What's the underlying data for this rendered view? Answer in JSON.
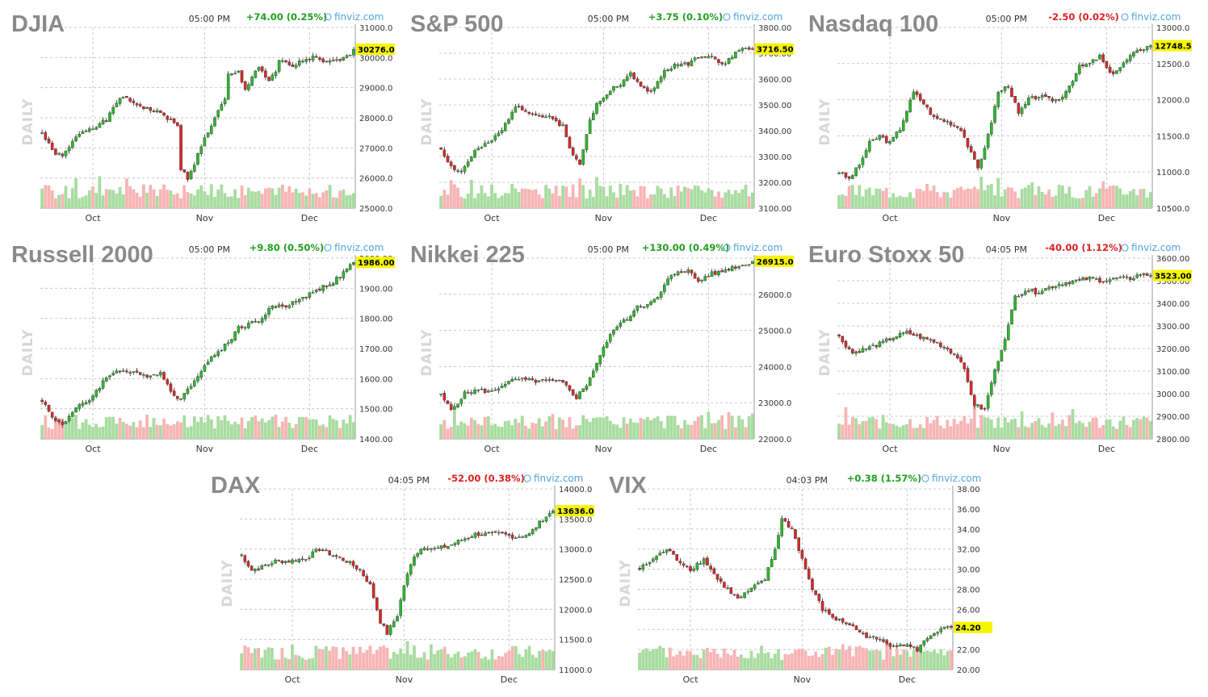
{
  "colors": {
    "up": "#2db82d",
    "down": "#d62a2a",
    "vol_up": "#a8dca0",
    "vol_down": "#f7b4b4",
    "grid": "#c8c8c8",
    "highlight": "#f5f500",
    "change_up": "#1fa01f",
    "change_down": "#dd1f1f",
    "source": "#4da6e0",
    "title": "#8a8a8a"
  },
  "chart_data": [
    {
      "type": "candlestick",
      "title": "DJIA",
      "time": "05:00 PM",
      "change": "+74.00 (0.25%)",
      "change_dir": "up",
      "source": "finviz.com",
      "side_label": "DAILY",
      "ylim": [
        25000,
        31000
      ],
      "yticks": [
        "31000.0",
        "30000.0",
        "29000.0",
        "28000.0",
        "27000.0",
        "26000.0",
        "25000.0"
      ],
      "xticks": [
        "Oct",
        "Nov",
        "Dec"
      ],
      "last_label": "30276.0",
      "last_value": 30276,
      "path": [
        [
          0,
          27500
        ],
        [
          3,
          26900
        ],
        [
          6,
          26700
        ],
        [
          11,
          27500
        ],
        [
          15,
          27700
        ],
        [
          19,
          27900
        ],
        [
          23,
          28700
        ],
        [
          27,
          28500
        ],
        [
          31,
          28300
        ],
        [
          36,
          28100
        ],
        [
          40,
          27700
        ],
        [
          41,
          26300
        ],
        [
          43,
          26000
        ],
        [
          45,
          26500
        ],
        [
          48,
          27300
        ],
        [
          51,
          28000
        ],
        [
          54,
          28600
        ],
        [
          55,
          29400
        ],
        [
          58,
          29500
        ],
        [
          60,
          28900
        ],
        [
          62,
          29400
        ],
        [
          64,
          29700
        ],
        [
          67,
          29200
        ],
        [
          69,
          29500
        ],
        [
          70,
          29900
        ],
        [
          74,
          29700
        ],
        [
          77,
          29900
        ],
        [
          80,
          30000
        ],
        [
          84,
          29800
        ],
        [
          87,
          29900
        ],
        [
          90,
          30000
        ],
        [
          92,
          30276
        ]
      ]
    },
    {
      "type": "candlestick",
      "title": "S&P 500",
      "time": "05:00 PM",
      "change": "+3.75 (0.10%)",
      "change_dir": "up",
      "source": "finviz.com",
      "side_label": "DAILY",
      "ylim": [
        3100,
        3800
      ],
      "yticks": [
        "3800.00",
        "3700.00",
        "3600.00",
        "3500.00",
        "3400.00",
        "3300.00",
        "3200.00",
        "3100.00"
      ],
      "xticks": [
        "Oct",
        "Nov",
        "Dec"
      ],
      "last_label": "3716.50",
      "last_value": 3716.5,
      "path": [
        [
          0,
          3330
        ],
        [
          3,
          3260
        ],
        [
          6,
          3240
        ],
        [
          10,
          3320
        ],
        [
          14,
          3350
        ],
        [
          18,
          3400
        ],
        [
          22,
          3500
        ],
        [
          25,
          3480
        ],
        [
          28,
          3460
        ],
        [
          32,
          3450
        ],
        [
          36,
          3420
        ],
        [
          39,
          3300
        ],
        [
          41,
          3270
        ],
        [
          44,
          3440
        ],
        [
          46,
          3510
        ],
        [
          50,
          3560
        ],
        [
          53,
          3580
        ],
        [
          56,
          3620
        ],
        [
          60,
          3560
        ],
        [
          63,
          3560
        ],
        [
          66,
          3630
        ],
        [
          70,
          3660
        ],
        [
          73,
          3660
        ],
        [
          76,
          3690
        ],
        [
          80,
          3690
        ],
        [
          83,
          3650
        ],
        [
          86,
          3690
        ],
        [
          89,
          3720
        ],
        [
          92,
          3716.5
        ]
      ]
    },
    {
      "type": "candlestick",
      "title": "Nasdaq 100",
      "time": "05:00 PM",
      "change": "-2.50 (0.02%)",
      "change_dir": "down",
      "source": "finviz.com",
      "side_label": "DAILY",
      "ylim": [
        10500,
        13000
      ],
      "yticks": [
        "13000.0",
        "12500.0",
        "12000.0",
        "11500.0",
        "11000.0",
        "10500.0"
      ],
      "xticks": [
        "Oct",
        "Nov",
        "Dec"
      ],
      "last_label": "12748.5",
      "last_value": 12748.5,
      "path": [
        [
          0,
          11000
        ],
        [
          3,
          10900
        ],
        [
          6,
          11100
        ],
        [
          9,
          11400
        ],
        [
          12,
          11500
        ],
        [
          15,
          11400
        ],
        [
          18,
          11600
        ],
        [
          22,
          12100
        ],
        [
          25,
          11950
        ],
        [
          28,
          11750
        ],
        [
          32,
          11700
        ],
        [
          36,
          11600
        ],
        [
          39,
          11250
        ],
        [
          41,
          11050
        ],
        [
          44,
          11500
        ],
        [
          47,
          12100
        ],
        [
          50,
          12200
        ],
        [
          53,
          11800
        ],
        [
          56,
          12000
        ],
        [
          59,
          12050
        ],
        [
          62,
          12000
        ],
        [
          65,
          12000
        ],
        [
          68,
          12200
        ],
        [
          71,
          12450
        ],
        [
          74,
          12500
        ],
        [
          77,
          12600
        ],
        [
          80,
          12350
        ],
        [
          83,
          12450
        ],
        [
          86,
          12600
        ],
        [
          89,
          12700
        ],
        [
          92,
          12748.5
        ]
      ]
    },
    {
      "type": "candlestick",
      "title": "Russell 2000",
      "time": "05:00 PM",
      "change": "+9.80 (0.50%)",
      "change_dir": "up",
      "source": "finviz.com",
      "side_label": "DAILY",
      "ylim": [
        1400,
        2000
      ],
      "yticks": [
        "2000.00",
        "1900.00",
        "1800.00",
        "1700.00",
        "1600.00",
        "1500.00",
        "1400.00"
      ],
      "xticks": [
        "Oct",
        "Nov",
        "Dec"
      ],
      "last_label": "1986.00",
      "last_value": 1986,
      "path": [
        [
          0,
          1530
        ],
        [
          3,
          1470
        ],
        [
          6,
          1450
        ],
        [
          10,
          1500
        ],
        [
          14,
          1530
        ],
        [
          18,
          1590
        ],
        [
          22,
          1630
        ],
        [
          26,
          1620
        ],
        [
          30,
          1610
        ],
        [
          35,
          1620
        ],
        [
          38,
          1560
        ],
        [
          41,
          1530
        ],
        [
          44,
          1580
        ],
        [
          47,
          1630
        ],
        [
          51,
          1680
        ],
        [
          55,
          1720
        ],
        [
          58,
          1770
        ],
        [
          61,
          1780
        ],
        [
          65,
          1800
        ],
        [
          68,
          1840
        ],
        [
          72,
          1840
        ],
        [
          75,
          1860
        ],
        [
          79,
          1880
        ],
        [
          82,
          1900
        ],
        [
          86,
          1920
        ],
        [
          89,
          1950
        ],
        [
          92,
          1986
        ]
      ]
    },
    {
      "type": "candlestick",
      "title": "Nikkei 225",
      "time": "05:00 PM",
      "change": "+130.00 (0.49%)",
      "change_dir": "up",
      "source": "finviz.com",
      "side_label": "DAILY",
      "ylim": [
        22000,
        27000
      ],
      "yticks": [
        "27000.0",
        "26000.0",
        "25000.0",
        "24000.0",
        "23000.0",
        "22000.0"
      ],
      "xticks": [
        "Oct",
        "Nov",
        "Dec"
      ],
      "last_label": "26915.0",
      "last_value": 26915,
      "path": [
        [
          0,
          23200
        ],
        [
          3,
          22800
        ],
        [
          7,
          23250
        ],
        [
          11,
          23350
        ],
        [
          15,
          23300
        ],
        [
          19,
          23550
        ],
        [
          23,
          23650
        ],
        [
          27,
          23600
        ],
        [
          32,
          23600
        ],
        [
          36,
          23550
        ],
        [
          40,
          23150
        ],
        [
          43,
          23500
        ],
        [
          46,
          24100
        ],
        [
          49,
          24700
        ],
        [
          52,
          25150
        ],
        [
          55,
          25300
        ],
        [
          58,
          25700
        ],
        [
          61,
          25700
        ],
        [
          64,
          25900
        ],
        [
          67,
          26400
        ],
        [
          70,
          26650
        ],
        [
          73,
          26650
        ],
        [
          76,
          26350
        ],
        [
          79,
          26550
        ],
        [
          82,
          26600
        ],
        [
          86,
          26750
        ],
        [
          89,
          26800
        ],
        [
          92,
          26915
        ]
      ]
    },
    {
      "type": "candlestick",
      "title": "Euro Stoxx 50",
      "time": "04:05 PM",
      "change": "-40.00 (1.12%)",
      "change_dir": "down",
      "source": "finviz.com",
      "side_label": "DAILY",
      "ylim": [
        2800,
        3600
      ],
      "yticks": [
        "3600.00",
        "3500.00",
        "3400.00",
        "3300.00",
        "3200.00",
        "3100.00",
        "3000.00",
        "2900.00",
        "2800.00"
      ],
      "xticks": [
        "Oct",
        "Nov",
        "Dec"
      ],
      "last_label": "3523.00",
      "last_value": 3523,
      "path": [
        [
          0,
          3250
        ],
        [
          4,
          3180
        ],
        [
          8,
          3200
        ],
        [
          12,
          3220
        ],
        [
          16,
          3250
        ],
        [
          20,
          3270
        ],
        [
          24,
          3250
        ],
        [
          28,
          3230
        ],
        [
          32,
          3200
        ],
        [
          36,
          3150
        ],
        [
          38,
          3050
        ],
        [
          40,
          2950
        ],
        [
          43,
          2930
        ],
        [
          45,
          3050
        ],
        [
          48,
          3200
        ],
        [
          50,
          3300
        ],
        [
          52,
          3430
        ],
        [
          55,
          3460
        ],
        [
          58,
          3450
        ],
        [
          62,
          3470
        ],
        [
          66,
          3490
        ],
        [
          70,
          3500
        ],
        [
          74,
          3510
        ],
        [
          78,
          3500
        ],
        [
          82,
          3510
        ],
        [
          86,
          3510
        ],
        [
          89,
          3530
        ],
        [
          92,
          3523
        ]
      ]
    },
    {
      "type": "candlestick",
      "title": "DAX",
      "time": "04:05 PM",
      "change": "-52.00 (0.38%)",
      "change_dir": "down",
      "source": "finviz.com",
      "side_label": "DAILY",
      "ylim": [
        11000,
        14000
      ],
      "yticks": [
        "14000.0",
        "13500.0",
        "13000.0",
        "12500.0",
        "12000.0",
        "11500.0",
        "11000.0"
      ],
      "xticks": [
        "Oct",
        "Nov",
        "Dec"
      ],
      "last_label": "13636.0",
      "last_value": 13636,
      "path": [
        [
          0,
          12900
        ],
        [
          3,
          12650
        ],
        [
          6,
          12700
        ],
        [
          10,
          12800
        ],
        [
          14,
          12800
        ],
        [
          19,
          12850
        ],
        [
          23,
          13000
        ],
        [
          27,
          12900
        ],
        [
          31,
          12800
        ],
        [
          35,
          12650
        ],
        [
          38,
          12400
        ],
        [
          41,
          11800
        ],
        [
          43,
          11600
        ],
        [
          46,
          11900
        ],
        [
          48,
          12400
        ],
        [
          51,
          12900
        ],
        [
          54,
          13050
        ],
        [
          57,
          13000
        ],
        [
          61,
          13050
        ],
        [
          65,
          13150
        ],
        [
          69,
          13250
        ],
        [
          73,
          13250
        ],
        [
          77,
          13250
        ],
        [
          81,
          13200
        ],
        [
          85,
          13250
        ],
        [
          89,
          13500
        ],
        [
          92,
          13636
        ]
      ]
    },
    {
      "type": "candlestick",
      "title": "VIX",
      "time": "04:03 PM",
      "change": "+0.38 (1.57%)",
      "change_dir": "up",
      "source": "finviz.com",
      "side_label": "DAILY",
      "ylim": [
        20,
        38
      ],
      "yticks": [
        "38.00",
        "36.00",
        "34.00",
        "32.00",
        "30.00",
        "28.00",
        "26.00",
        "24.00",
        "22.00",
        "20.00"
      ],
      "xticks": [
        "Oct",
        "Nov",
        "Dec"
      ],
      "last_label": "24.20",
      "last_value": 24.2,
      "path": [
        [
          0,
          30
        ],
        [
          4,
          31
        ],
        [
          8,
          32
        ],
        [
          11,
          31
        ],
        [
          15,
          30
        ],
        [
          19,
          31
        ],
        [
          23,
          29
        ],
        [
          26,
          28
        ],
        [
          29,
          27
        ],
        [
          33,
          28
        ],
        [
          37,
          29
        ],
        [
          40,
          32
        ],
        [
          42,
          35
        ],
        [
          45,
          34
        ],
        [
          48,
          31
        ],
        [
          51,
          28
        ],
        [
          54,
          26
        ],
        [
          58,
          25
        ],
        [
          62,
          24.5
        ],
        [
          66,
          23.5
        ],
        [
          70,
          23
        ],
        [
          74,
          22.5
        ],
        [
          78,
          22.5
        ],
        [
          82,
          22
        ],
        [
          86,
          23.5
        ],
        [
          89,
          24
        ],
        [
          92,
          24.2
        ]
      ]
    }
  ]
}
